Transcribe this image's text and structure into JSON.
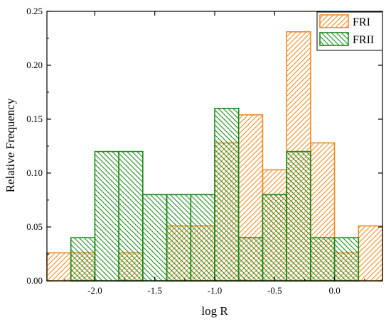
{
  "chart_data": {
    "type": "bar",
    "xlabel": "log R",
    "ylabel": "Relative Frequency",
    "xlim": [
      -2.4,
      0.4
    ],
    "ylim": [
      0,
      0.25
    ],
    "xticks": [
      -2.0,
      -1.5,
      -1.0,
      -0.5,
      0.0
    ],
    "xtick_labels": [
      "-2.0",
      "-1.5",
      "-1.0",
      "-0.5",
      "0.0"
    ],
    "yticks": [
      0.0,
      0.05,
      0.1,
      0.15,
      0.2,
      0.25
    ],
    "ytick_labels": [
      "0.00",
      "0.05",
      "0.10",
      "0.15",
      "0.20",
      "0.25"
    ],
    "grid": false,
    "legend_position": "top-right",
    "series": [
      {
        "name": "FRI",
        "color": "#f28a1f",
        "hatch": "forward-diagonal",
        "bins": [
          {
            "x0": -2.4,
            "x1": -2.2,
            "y": 0.026
          },
          {
            "x0": -2.2,
            "x1": -2.0,
            "y": 0.026
          },
          {
            "x0": -1.8,
            "x1": -1.6,
            "y": 0.026
          },
          {
            "x0": -1.4,
            "x1": -1.2,
            "y": 0.051
          },
          {
            "x0": -1.2,
            "x1": -1.0,
            "y": 0.051
          },
          {
            "x0": -1.0,
            "x1": -0.8,
            "y": 0.128
          },
          {
            "x0": -0.8,
            "x1": -0.6,
            "y": 0.154
          },
          {
            "x0": -0.6,
            "x1": -0.4,
            "y": 0.103
          },
          {
            "x0": -0.4,
            "x1": -0.2,
            "y": 0.231
          },
          {
            "x0": -0.2,
            "x1": 0.0,
            "y": 0.128
          },
          {
            "x0": 0.0,
            "x1": 0.2,
            "y": 0.026
          },
          {
            "x0": 0.2,
            "x1": 0.4,
            "y": 0.051
          }
        ]
      },
      {
        "name": "FRII",
        "color": "#1a8a1a",
        "hatch": "back-diagonal",
        "bins": [
          {
            "x0": -2.2,
            "x1": -2.0,
            "y": 0.04
          },
          {
            "x0": -2.0,
            "x1": -1.8,
            "y": 0.12
          },
          {
            "x0": -1.8,
            "x1": -1.6,
            "y": 0.12
          },
          {
            "x0": -1.6,
            "x1": -1.4,
            "y": 0.08
          },
          {
            "x0": -1.4,
            "x1": -1.2,
            "y": 0.08
          },
          {
            "x0": -1.2,
            "x1": -1.0,
            "y": 0.08
          },
          {
            "x0": -1.0,
            "x1": -0.8,
            "y": 0.16
          },
          {
            "x0": -0.8,
            "x1": -0.6,
            "y": 0.04
          },
          {
            "x0": -0.6,
            "x1": -0.4,
            "y": 0.08
          },
          {
            "x0": -0.4,
            "x1": -0.2,
            "y": 0.12
          },
          {
            "x0": -0.2,
            "x1": 0.0,
            "y": 0.04
          },
          {
            "x0": 0.0,
            "x1": 0.2,
            "y": 0.04
          }
        ]
      }
    ]
  }
}
